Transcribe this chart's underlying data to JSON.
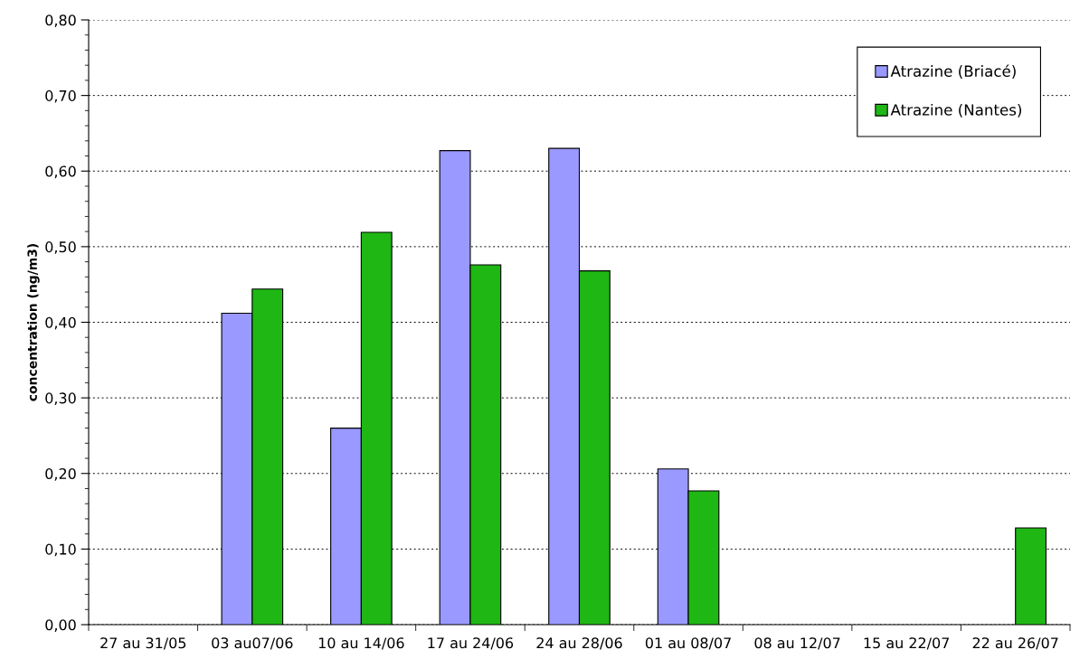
{
  "chart_data": {
    "type": "bar",
    "ylabel": "concentration (ng/m3)",
    "categories": [
      "27 au 31/05",
      "03 au07/06",
      "10 au 14/06",
      "17 au 24/06",
      "24 au 28/06",
      "01 au 08/07",
      "08 au 12/07",
      "15 au 22/07",
      "22 au 26/07"
    ],
    "series": [
      {
        "name": "Atrazine (Briacé)",
        "color": "#9999ff",
        "values": [
          null,
          0.412,
          0.26,
          0.627,
          0.63,
          0.206,
          null,
          null,
          null
        ]
      },
      {
        "name": "Atrazine (Nantes)",
        "color": "#1fb714",
        "values": [
          null,
          0.444,
          0.519,
          0.476,
          0.468,
          0.177,
          null,
          null,
          0.128
        ]
      }
    ],
    "ylim": [
      0,
      0.8
    ],
    "yticks": [
      {
        "value": 0,
        "label": "0,00"
      },
      {
        "value": 0.1,
        "label": "0,10"
      },
      {
        "value": 0.2,
        "label": "0,20"
      },
      {
        "value": 0.3,
        "label": "0,30"
      },
      {
        "value": 0.4,
        "label": "0,40"
      },
      {
        "value": 0.5,
        "label": "0,50"
      },
      {
        "value": 0.6,
        "label": "0,60"
      },
      {
        "value": 0.7,
        "label": "0,70"
      },
      {
        "value": 0.8,
        "label": "0,80"
      }
    ],
    "grid": "y",
    "legend": "top right"
  }
}
